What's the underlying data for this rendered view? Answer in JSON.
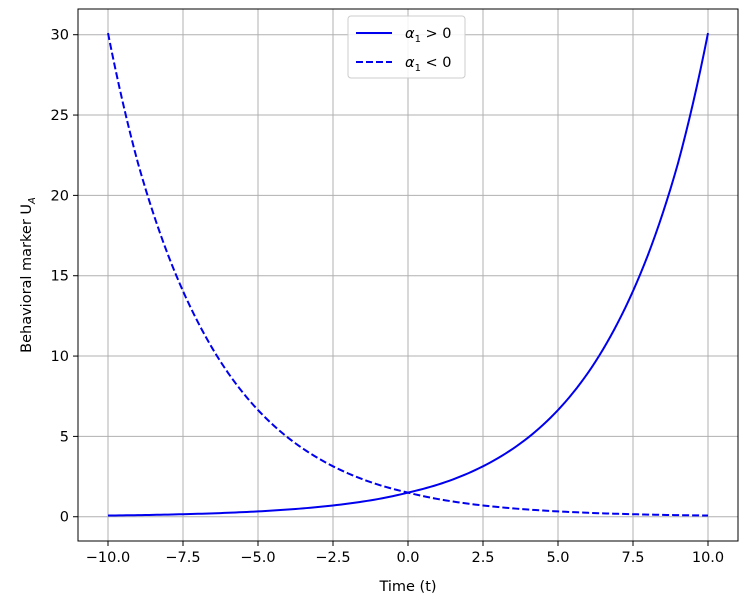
{
  "chart_data": {
    "type": "line",
    "title": "",
    "xlabel": "Time (t)",
    "ylabel_main": "Behavioral marker U",
    "ylabel_sub": "A",
    "xlim": [
      -11.0,
      11.0
    ],
    "ylim": [
      -1.51,
      31.6
    ],
    "grid": true,
    "legend_position": "top-center",
    "x_ticks": [
      -10,
      -7.5,
      -5,
      -2.5,
      0,
      2.5,
      5,
      7.5,
      10
    ],
    "x_tick_labels": [
      "−10.0",
      "−7.5",
      "−5.0",
      "−2.5",
      "0.0",
      "2.5",
      "5.0",
      "7.5",
      "10.0"
    ],
    "y_ticks": [
      0,
      5,
      10,
      15,
      20,
      25,
      30
    ],
    "y_tick_labels": [
      "0",
      "5",
      "10",
      "15",
      "20",
      "25",
      "30"
    ],
    "x": [
      -10,
      -9,
      -8,
      -7,
      -6,
      -5,
      -4,
      -3,
      -2,
      -1,
      0,
      1,
      2,
      3,
      4,
      5,
      6,
      7,
      8,
      9,
      10
    ],
    "series": [
      {
        "name_main": "α",
        "name_sub": "1",
        "name_rel": " > 0",
        "style": "solid",
        "color": "#0000ee",
        "values": [
          0.075,
          0.1,
          0.135,
          0.182,
          0.246,
          0.332,
          0.448,
          0.604,
          0.815,
          1.1,
          1.5,
          2.0,
          2.7,
          3.65,
          4.92,
          6.64,
          8.96,
          12.1,
          16.3,
          22.0,
          30.1
        ]
      },
      {
        "name_main": "α",
        "name_sub": "1",
        "name_rel": " < 0",
        "style": "dashed",
        "color": "#0000ee",
        "values": [
          30.1,
          22.0,
          16.3,
          12.1,
          8.96,
          6.64,
          4.92,
          3.65,
          2.7,
          2.0,
          1.5,
          1.1,
          0.815,
          0.604,
          0.448,
          0.332,
          0.246,
          0.182,
          0.135,
          0.1,
          0.075
        ]
      }
    ]
  }
}
